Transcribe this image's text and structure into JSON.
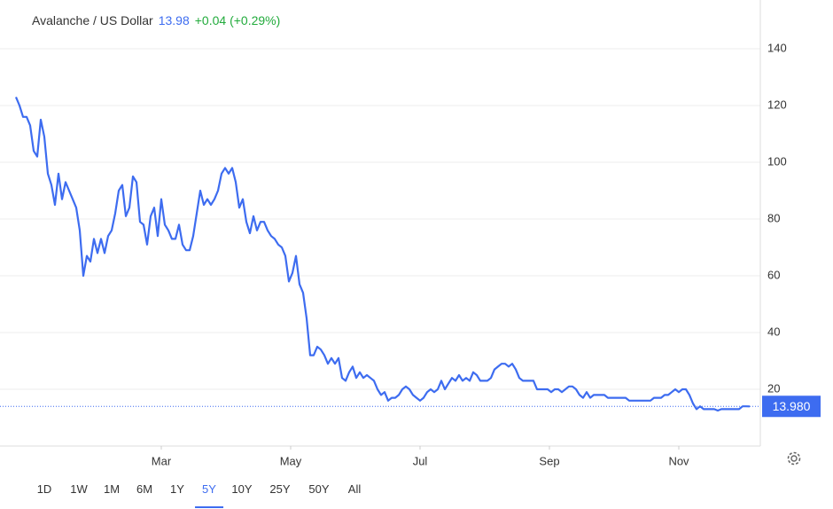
{
  "chart_data": {
    "type": "line",
    "title": "Avalanche / US Dollar",
    "price": 13.98,
    "change": "+0.04 (+0.29%)",
    "color": "#3d6cf0",
    "grid": true,
    "x": [
      0,
      1,
      2,
      3,
      4,
      5,
      6,
      7,
      8,
      9,
      10,
      11,
      12,
      13,
      14,
      15,
      16,
      17,
      18,
      19,
      20,
      21,
      22,
      23,
      24,
      25,
      26,
      27,
      28,
      29,
      30,
      31,
      32,
      33,
      34,
      35,
      36,
      37,
      38,
      39,
      40,
      41,
      42,
      43,
      44,
      45,
      46,
      47,
      48,
      49,
      50,
      51,
      52,
      53,
      54,
      55,
      56,
      57,
      58,
      59,
      60,
      61,
      62,
      63,
      64,
      65,
      66,
      67,
      68,
      69,
      70,
      71,
      72,
      73,
      74,
      75,
      76,
      77,
      78,
      79,
      80,
      81,
      82,
      83,
      84,
      85,
      86,
      87,
      88,
      89,
      90,
      91,
      92,
      93,
      94,
      95,
      96,
      97,
      98,
      99,
      100,
      101,
      102,
      103,
      104,
      105,
      106,
      107,
      108,
      109,
      110,
      111,
      112,
      113,
      114,
      115,
      116,
      117,
      118,
      119,
      120,
      121,
      122,
      123,
      124,
      125,
      126,
      127,
      128,
      129,
      130,
      131,
      132,
      133,
      134,
      135,
      136,
      137,
      138,
      139,
      140,
      141,
      142,
      143,
      144,
      145,
      146,
      147,
      148,
      149,
      150,
      151,
      152,
      153,
      154,
      155,
      156,
      157,
      158,
      159,
      160,
      161,
      162,
      163,
      164,
      165,
      166,
      167,
      168,
      169,
      170,
      171,
      172,
      173,
      174,
      175,
      176,
      177,
      178,
      179,
      180,
      181,
      182,
      183,
      184,
      185,
      186,
      187,
      188,
      189,
      190,
      191,
      192,
      193,
      194,
      195,
      196,
      197,
      198,
      199,
      200,
      201,
      202,
      203,
      204,
      205,
      206,
      207
    ],
    "values": [
      123,
      120,
      116,
      116,
      113,
      104,
      102,
      115,
      109,
      96,
      92,
      85,
      96,
      87,
      93,
      90,
      87,
      84,
      76,
      60,
      67,
      65,
      73,
      68,
      73,
      68,
      74,
      76,
      82,
      90,
      92,
      81,
      84,
      95,
      93,
      79,
      78,
      71,
      81,
      84,
      74,
      87,
      78,
      76,
      73,
      73,
      78,
      71,
      69,
      69,
      74,
      82,
      90,
      85,
      87,
      85,
      87,
      90,
      96,
      98,
      96,
      98,
      93,
      84,
      87,
      79,
      75,
      81,
      76,
      79,
      79,
      76,
      74,
      73,
      71,
      70,
      67,
      58,
      61,
      67,
      57,
      54,
      45,
      32,
      32,
      35,
      34,
      32,
      29,
      31,
      29,
      31,
      24,
      23,
      26,
      28,
      24,
      26,
      24,
      25,
      24,
      23,
      20,
      18,
      19,
      16,
      17,
      17,
      18,
      20,
      21,
      20,
      18,
      17,
      16,
      17,
      19,
      20,
      19,
      20,
      23,
      20,
      22,
      24,
      23,
      25,
      23,
      24,
      23,
      26,
      25,
      23,
      23,
      23,
      24,
      27,
      28,
      29,
      29,
      28,
      29,
      27,
      24,
      23,
      23,
      23,
      23,
      20,
      20,
      20,
      20,
      19,
      20,
      20,
      19,
      20,
      21,
      21,
      20,
      18,
      17,
      19,
      17,
      18,
      18,
      18,
      18,
      17,
      17,
      17,
      17,
      17,
      17,
      16,
      16,
      16,
      16,
      16,
      16,
      16,
      17,
      17,
      17,
      18,
      18,
      19,
      20,
      19,
      20,
      20,
      18,
      15,
      13,
      14,
      13,
      13,
      13,
      13,
      12.5,
      13,
      13,
      13,
      13,
      13,
      13,
      14,
      14,
      13.98
    ],
    "xlim": [
      0,
      210
    ],
    "xticks": [
      {
        "value": 41,
        "label": "Mar"
      },
      {
        "value": 77.5,
        "label": "May"
      },
      {
        "value": 114,
        "label": "Jul"
      },
      {
        "value": 150.5,
        "label": "Sep"
      },
      {
        "value": 187,
        "label": "Nov"
      }
    ],
    "ylim": [
      0,
      155
    ],
    "yticks": [
      20,
      40,
      60,
      80,
      100,
      120,
      140
    ],
    "last_label": {
      "value": 13.98,
      "label": "13.980"
    },
    "ranges": [
      "1D",
      "1W",
      "1M",
      "6M",
      "1Y",
      "5Y",
      "10Y",
      "25Y",
      "50Y",
      "All"
    ],
    "active_range": "5Y"
  }
}
